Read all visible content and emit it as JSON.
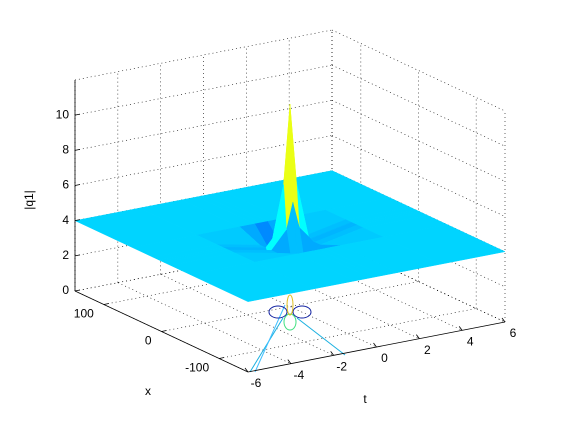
{
  "chart_data": {
    "type": "surface3d",
    "xlabel": "t",
    "ylabel": "x",
    "zlabel": "|q1|",
    "x": [
      -6,
      -3,
      -1,
      -0.3,
      0,
      0.3,
      1,
      3,
      6
    ],
    "y": [
      -150,
      -50,
      -15,
      -5,
      0,
      5,
      15,
      50,
      150
    ],
    "z": [
      [
        4,
        4,
        4,
        4,
        4,
        4,
        4,
        4,
        4
      ],
      [
        4,
        4,
        4,
        4,
        4,
        4,
        4,
        4,
        4
      ],
      [
        4,
        4,
        3.5,
        2.5,
        2,
        2.5,
        3.5,
        4,
        4
      ],
      [
        4,
        4,
        3.5,
        4.5,
        6,
        4.5,
        3.5,
        4,
        4
      ],
      [
        4,
        4,
        3,
        7,
        11.5,
        7,
        3,
        4,
        4
      ],
      [
        4,
        4,
        3.5,
        4.5,
        6,
        4.5,
        3.5,
        4,
        4
      ],
      [
        4,
        4,
        3.5,
        2.5,
        2,
        2.5,
        3.5,
        4,
        4
      ],
      [
        4,
        4,
        4,
        4,
        4,
        4,
        4,
        4,
        4
      ],
      [
        4,
        4,
        4,
        4,
        4,
        4,
        4,
        4,
        4
      ]
    ],
    "xlim": [
      -6,
      6
    ],
    "ylim": [
      -150,
      150
    ],
    "zlim": [
      0,
      12
    ],
    "xticks": [
      -6,
      -4,
      -2,
      0,
      2,
      4,
      6
    ],
    "yticks": [
      -100,
      0,
      100
    ],
    "zticks": [
      0,
      2,
      4,
      6,
      8,
      10
    ],
    "grid": true,
    "colormap": "jet"
  }
}
